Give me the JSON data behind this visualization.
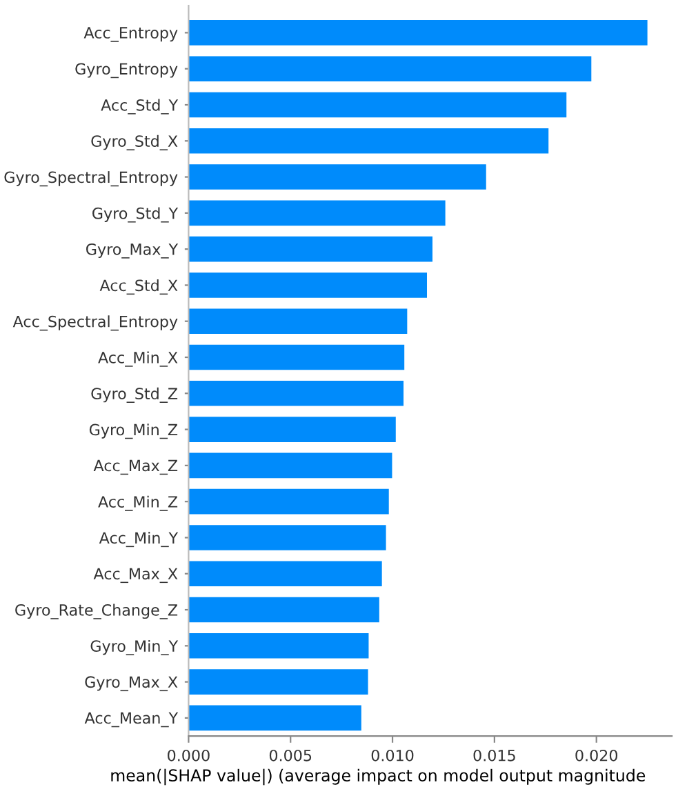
{
  "chart_data": {
    "type": "bar",
    "orientation": "horizontal",
    "categories": [
      "Acc_Entropy",
      "Gyro_Entropy",
      "Acc_Std_Y",
      "Gyro_Std_X",
      "Gyro_Spectral_Entropy",
      "Gyro_Std_Y",
      "Gyro_Max_Y",
      "Acc_Std_X",
      "Acc_Spectral_Entropy",
      "Acc_Min_X",
      "Gyro_Std_Z",
      "Gyro_Min_Z",
      "Acc_Max_Z",
      "Acc_Min_Z",
      "Acc_Min_Y",
      "Acc_Max_X",
      "Gyro_Rate_Change_Z",
      "Gyro_Min_Y",
      "Gyro_Max_X",
      "Acc_Mean_Y"
    ],
    "values": [
      0.0225,
      0.01975,
      0.01853,
      0.01765,
      0.01459,
      0.01259,
      0.01196,
      0.01169,
      0.01072,
      0.01058,
      0.01054,
      0.01016,
      0.00998,
      0.00982,
      0.00968,
      0.00948,
      0.00935,
      0.00883,
      0.0088,
      0.00847
    ],
    "color": "#008bfb",
    "xlabel": "mean(|SHAP value|) (average impact on model output magnitude",
    "xlim": [
      0,
      0.0237
    ],
    "xticks": [
      {
        "value": 0,
        "label": "0.000"
      },
      {
        "value": 0.005,
        "label": "0.005"
      },
      {
        "value": 0.01,
        "label": "0.010"
      },
      {
        "value": 0.015,
        "label": "0.015"
      },
      {
        "value": 0.02,
        "label": "0.020"
      }
    ],
    "grid": false,
    "legend": false
  }
}
